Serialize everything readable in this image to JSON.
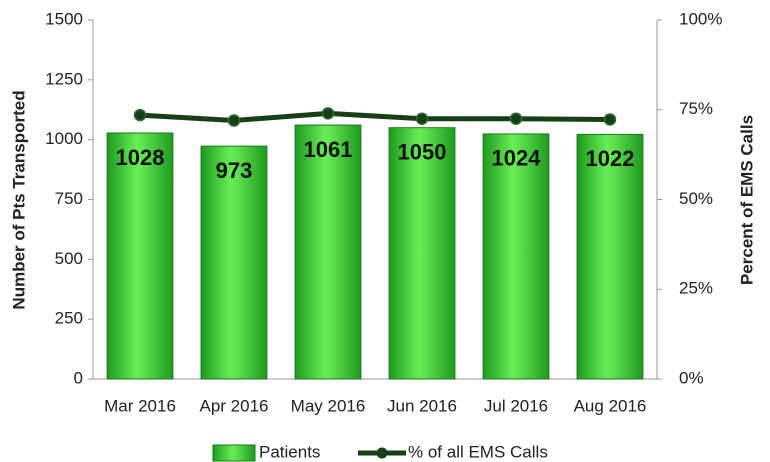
{
  "chart_data": {
    "type": "bar",
    "categories": [
      "Mar 2016",
      "Apr 2016",
      "May 2016",
      "Jun 2016",
      "Jul 2016",
      "Aug 2016"
    ],
    "series": [
      {
        "name": "Patients",
        "type": "bar",
        "color": "#33cc33",
        "values": [
          1028,
          973,
          1061,
          1050,
          1024,
          1022
        ]
      },
      {
        "name": "% of all EMS Calls",
        "type": "line",
        "color": "#173f17",
        "axis": "y2",
        "values": [
          73.5,
          72,
          74,
          72.5,
          72.5,
          72.3
        ]
      }
    ],
    "ylabel": "Number of Pts Transported",
    "y2label": "Percent of EMS Calls",
    "ylim": [
      0,
      1500
    ],
    "yticks": [
      0,
      250,
      500,
      750,
      1000,
      1250,
      1500
    ],
    "y2lim": [
      0,
      100
    ],
    "y2ticks": [
      {
        "value": 0,
        "label": "0%"
      },
      {
        "value": 25,
        "label": "25%"
      },
      {
        "value": 50,
        "label": "50%"
      },
      {
        "value": 75,
        "label": "75%"
      },
      {
        "value": 100,
        "label": "100%"
      }
    ],
    "legend": "bottom",
    "grid": false
  }
}
